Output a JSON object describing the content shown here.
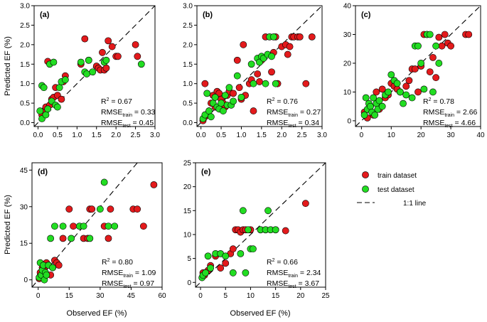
{
  "figure": {
    "legend": {
      "train": "train dataset",
      "test": "test dataset",
      "line": "1:1 line"
    },
    "colors": {
      "train": "#e31a1c",
      "test": "#22dd22",
      "edge": "#000000"
    }
  },
  "chart_data": [
    {
      "type": "scatter",
      "panel": "(a)",
      "xlim": [
        -0.1,
        3.0
      ],
      "ylim": [
        -0.1,
        3.0
      ],
      "xticks": [
        "0.0",
        "0.5",
        "1.0",
        "1.5",
        "2.0",
        "2.5",
        "3.0"
      ],
      "yticks": [
        "0.0",
        "0.5",
        "1.0",
        "1.5",
        "2.0",
        "2.5",
        "3.0"
      ],
      "ylabel": "Predicted EF (%)",
      "xlabel": "",
      "stats": {
        "r2": "0.67",
        "train": "0.33",
        "test": "0.45"
      },
      "train": [
        [
          0.1,
          0.2
        ],
        [
          0.15,
          0.3
        ],
        [
          0.2,
          0.4
        ],
        [
          0.25,
          1.57
        ],
        [
          0.3,
          0.45
        ],
        [
          0.35,
          0.6
        ],
        [
          0.4,
          0.65
        ],
        [
          0.45,
          0.9
        ],
        [
          0.5,
          0.7
        ],
        [
          0.6,
          0.6
        ],
        [
          0.65,
          1.05
        ],
        [
          0.7,
          1.2
        ],
        [
          1.1,
          1.5
        ],
        [
          1.2,
          2.15
        ],
        [
          1.3,
          1.6
        ],
        [
          1.5,
          1.45
        ],
        [
          1.55,
          1.4
        ],
        [
          1.6,
          1.35
        ],
        [
          1.65,
          1.8
        ],
        [
          1.7,
          1.35
        ],
        [
          1.75,
          1.4
        ],
        [
          1.8,
          2.1
        ],
        [
          1.9,
          1.95
        ],
        [
          2.0,
          1.7
        ],
        [
          2.05,
          1.7
        ],
        [
          2.5,
          2.0
        ],
        [
          2.55,
          1.7
        ]
      ],
      "test": [
        [
          0.05,
          0.3
        ],
        [
          0.1,
          0.95
        ],
        [
          0.1,
          0.1
        ],
        [
          0.15,
          0.9
        ],
        [
          0.2,
          0.2
        ],
        [
          0.25,
          0.35
        ],
        [
          0.3,
          1.5
        ],
        [
          0.35,
          0.55
        ],
        [
          0.4,
          1.55
        ],
        [
          0.45,
          0.45
        ],
        [
          0.5,
          0.4
        ],
        [
          0.55,
          0.9
        ],
        [
          0.6,
          1.05
        ],
        [
          0.7,
          1.1
        ],
        [
          1.1,
          1.55
        ],
        [
          1.2,
          1.3
        ],
        [
          1.25,
          1.25
        ],
        [
          1.3,
          1.6
        ],
        [
          1.4,
          1.3
        ],
        [
          1.7,
          1.55
        ],
        [
          1.75,
          1.6
        ],
        [
          2.65,
          1.5
        ]
      ]
    },
    {
      "type": "scatter",
      "panel": "(b)",
      "xlim": [
        -0.1,
        3.0
      ],
      "ylim": [
        -0.1,
        3.0
      ],
      "xticks": [
        "0.0",
        "0.5",
        "1.0",
        "1.5",
        "2.0",
        "2.5",
        "3.0"
      ],
      "yticks": [
        "0.0",
        "0.5",
        "1.0",
        "1.5",
        "2.0",
        "2.5",
        "3.0"
      ],
      "ylabel": "",
      "xlabel": "",
      "stats": {
        "r2": "0.76",
        "train": "0.27",
        "test": "0.34"
      },
      "train": [
        [
          0.05,
          0.05
        ],
        [
          0.1,
          0.15
        ],
        [
          0.1,
          1.0
        ],
        [
          0.15,
          0.2
        ],
        [
          0.2,
          0.3
        ],
        [
          0.25,
          0.5
        ],
        [
          0.3,
          0.7
        ],
        [
          0.35,
          0.4
        ],
        [
          0.4,
          0.8
        ],
        [
          0.45,
          0.75
        ],
        [
          0.5,
          0.6
        ],
        [
          0.55,
          0.5
        ],
        [
          0.6,
          0.4
        ],
        [
          0.65,
          0.7
        ],
        [
          0.7,
          0.8
        ],
        [
          0.8,
          0.75
        ],
        [
          0.9,
          1.6
        ],
        [
          0.95,
          0.9
        ],
        [
          1.0,
          0.6
        ],
        [
          1.05,
          2.0
        ],
        [
          1.1,
          0.7
        ],
        [
          1.2,
          1.0
        ],
        [
          1.25,
          1.1
        ],
        [
          1.3,
          0.3
        ],
        [
          1.4,
          1.25
        ],
        [
          1.45,
          1.05
        ],
        [
          1.5,
          1.6
        ],
        [
          1.6,
          2.2
        ],
        [
          1.75,
          1.3
        ],
        [
          1.8,
          1.8
        ],
        [
          1.85,
          2.2
        ],
        [
          1.9,
          1.0
        ],
        [
          2.0,
          1.95
        ],
        [
          2.1,
          2.0
        ],
        [
          2.15,
          1.75
        ],
        [
          2.2,
          1.95
        ],
        [
          2.25,
          2.2
        ],
        [
          2.3,
          2.2
        ],
        [
          2.4,
          2.2
        ],
        [
          2.45,
          2.2
        ],
        [
          2.6,
          1.0
        ],
        [
          2.75,
          2.2
        ]
      ],
      "test": [
        [
          0.05,
          0.1
        ],
        [
          0.1,
          0.2
        ],
        [
          0.15,
          0.75
        ],
        [
          0.2,
          0.3
        ],
        [
          0.25,
          0.15
        ],
        [
          0.3,
          0.5
        ],
        [
          0.35,
          0.65
        ],
        [
          0.4,
          0.4
        ],
        [
          0.45,
          0.35
        ],
        [
          0.5,
          0.5
        ],
        [
          0.55,
          0.3
        ],
        [
          0.6,
          0.7
        ],
        [
          0.65,
          0.45
        ],
        [
          0.7,
          0.9
        ],
        [
          0.75,
          0.45
        ],
        [
          0.8,
          0.55
        ],
        [
          0.9,
          1.2
        ],
        [
          1.0,
          0.65
        ],
        [
          1.25,
          1.5
        ],
        [
          1.3,
          1.0
        ],
        [
          1.4,
          1.65
        ],
        [
          1.45,
          1.55
        ],
        [
          1.5,
          1.7
        ],
        [
          1.55,
          1.65
        ],
        [
          1.6,
          1.0
        ],
        [
          1.65,
          1.75
        ],
        [
          1.7,
          2.2
        ],
        [
          1.75,
          1.7
        ],
        [
          1.8,
          2.2
        ],
        [
          1.85,
          1.0
        ]
      ]
    },
    {
      "type": "scatter",
      "panel": "(c)",
      "xlim": [
        -2,
        40
      ],
      "ylim": [
        -2,
        40
      ],
      "xticks": [
        "0",
        "10",
        "20",
        "30",
        "40"
      ],
      "yticks": [
        "0",
        "10",
        "20",
        "30",
        "40"
      ],
      "ylabel": "",
      "xlabel": "",
      "stats": {
        "r2": "0.78",
        "train": "2.66",
        "test": "4.66"
      },
      "train": [
        [
          1,
          3
        ],
        [
          2,
          1
        ],
        [
          3,
          5
        ],
        [
          4,
          2
        ],
        [
          5,
          10
        ],
        [
          6,
          4
        ],
        [
          7,
          11
        ],
        [
          8,
          8
        ],
        [
          9,
          9
        ],
        [
          10,
          13
        ],
        [
          11,
          12
        ],
        [
          12,
          11
        ],
        [
          13,
          10
        ],
        [
          15,
          12
        ],
        [
          16,
          14
        ],
        [
          17,
          18
        ],
        [
          18,
          18
        ],
        [
          19,
          10
        ],
        [
          20,
          19
        ],
        [
          21,
          30
        ],
        [
          22,
          30
        ],
        [
          23,
          17
        ],
        [
          24,
          22
        ],
        [
          25,
          15
        ],
        [
          26,
          29
        ],
        [
          27,
          26
        ],
        [
          28,
          30
        ],
        [
          29,
          27
        ],
        [
          30,
          26
        ],
        [
          35,
          30
        ],
        [
          36,
          30
        ]
      ],
      "test": [
        [
          1,
          2
        ],
        [
          1.5,
          8
        ],
        [
          2,
          4
        ],
        [
          2.5,
          6
        ],
        [
          3,
          5
        ],
        [
          3.5,
          3
        ],
        [
          4,
          8
        ],
        [
          4.5,
          2
        ],
        [
          5,
          6
        ],
        [
          5.5,
          4
        ],
        [
          6,
          7
        ],
        [
          7,
          5
        ],
        [
          8,
          9
        ],
        [
          9,
          10
        ],
        [
          10,
          16
        ],
        [
          11,
          14
        ],
        [
          12,
          13
        ],
        [
          13,
          10
        ],
        [
          14,
          6
        ],
        [
          15,
          9
        ],
        [
          17,
          8
        ],
        [
          18,
          26
        ],
        [
          19,
          26
        ],
        [
          20,
          20
        ],
        [
          21,
          11
        ],
        [
          22,
          30
        ],
        [
          23,
          30
        ],
        [
          24,
          10
        ],
        [
          25,
          26
        ],
        [
          26,
          20
        ]
      ]
    },
    {
      "type": "scatter",
      "panel": "(d)",
      "xlim": [
        -3,
        60
      ],
      "ylim": [
        -3,
        48
      ],
      "xticks": [
        "0",
        "15",
        "30",
        "45",
        "60"
      ],
      "yticks": [
        "0",
        "15",
        "30",
        "45"
      ],
      "ylabel": "Predicted EF (%)",
      "xlabel": "Observed EF (%)",
      "stats": {
        "r2": "0.80",
        "train": "1.09",
        "test": "0.97"
      },
      "train": [
        [
          0.5,
          0.5
        ],
        [
          1,
          3
        ],
        [
          1.5,
          1.5
        ],
        [
          2,
          5
        ],
        [
          3,
          4
        ],
        [
          4,
          7
        ],
        [
          5,
          6
        ],
        [
          6,
          2
        ],
        [
          7,
          5
        ],
        [
          8,
          8
        ],
        [
          9,
          7
        ],
        [
          10,
          6
        ],
        [
          12,
          17
        ],
        [
          15,
          29
        ],
        [
          17,
          22
        ],
        [
          20,
          22
        ],
        [
          22,
          17
        ],
        [
          24,
          17
        ],
        [
          25,
          29
        ],
        [
          26,
          29
        ],
        [
          32,
          22
        ],
        [
          34,
          17
        ],
        [
          35,
          29
        ],
        [
          46,
          29
        ],
        [
          48,
          29
        ],
        [
          51,
          22
        ],
        [
          56,
          39
        ]
      ],
      "test": [
        [
          0.5,
          1
        ],
        [
          1,
          7
        ],
        [
          1.5,
          2
        ],
        [
          2,
          4
        ],
        [
          2.5,
          6
        ],
        [
          3,
          0
        ],
        [
          3.5,
          3
        ],
        [
          4,
          2
        ],
        [
          5,
          6
        ],
        [
          6,
          17
        ],
        [
          7,
          5
        ],
        [
          8,
          22
        ],
        [
          12,
          22
        ],
        [
          16,
          17
        ],
        [
          20,
          22
        ],
        [
          22,
          22
        ],
        [
          25,
          17
        ],
        [
          30,
          29
        ],
        [
          32,
          40
        ],
        [
          34,
          22
        ],
        [
          37,
          22
        ]
      ]
    },
    {
      "type": "scatter",
      "panel": "(e)",
      "xlim": [
        -1,
        25
      ],
      "ylim": [
        -1,
        25
      ],
      "xticks": [
        "0",
        "5",
        "10",
        "15",
        "20",
        "25"
      ],
      "yticks": [
        "0",
        "5",
        "10",
        "15",
        "20",
        "25"
      ],
      "ylabel": "",
      "xlabel": "Observed EF (%)",
      "stats": {
        "r2": "0.66",
        "train": "2.34",
        "test": "3.67"
      },
      "train": [
        [
          0.5,
          2
        ],
        [
          0.8,
          1.5
        ],
        [
          1,
          2
        ],
        [
          1.5,
          2.5
        ],
        [
          2,
          3.5
        ],
        [
          3,
          5.5
        ],
        [
          4,
          3
        ],
        [
          5,
          4
        ],
        [
          6,
          6
        ],
        [
          6.5,
          7
        ],
        [
          7,
          11
        ],
        [
          7.5,
          11
        ],
        [
          8,
          10.5
        ],
        [
          8.5,
          11
        ],
        [
          9,
          11
        ],
        [
          10,
          11
        ],
        [
          12,
          11
        ],
        [
          13,
          11
        ],
        [
          15,
          11
        ],
        [
          17,
          10.8
        ],
        [
          21,
          16.5
        ]
      ],
      "test": [
        [
          0.3,
          1
        ],
        [
          0.5,
          1.5
        ],
        [
          1,
          2
        ],
        [
          1.5,
          5.5
        ],
        [
          2,
          3
        ],
        [
          3,
          6
        ],
        [
          4,
          6
        ],
        [
          5,
          5.5
        ],
        [
          6.5,
          2
        ],
        [
          8,
          6
        ],
        [
          8.5,
          15
        ],
        [
          9,
          2
        ],
        [
          9.5,
          11
        ],
        [
          10,
          7
        ],
        [
          10.5,
          7
        ],
        [
          12,
          11
        ],
        [
          13,
          11
        ],
        [
          13.5,
          15
        ],
        [
          14,
          11
        ],
        [
          15,
          11
        ]
      ]
    }
  ]
}
